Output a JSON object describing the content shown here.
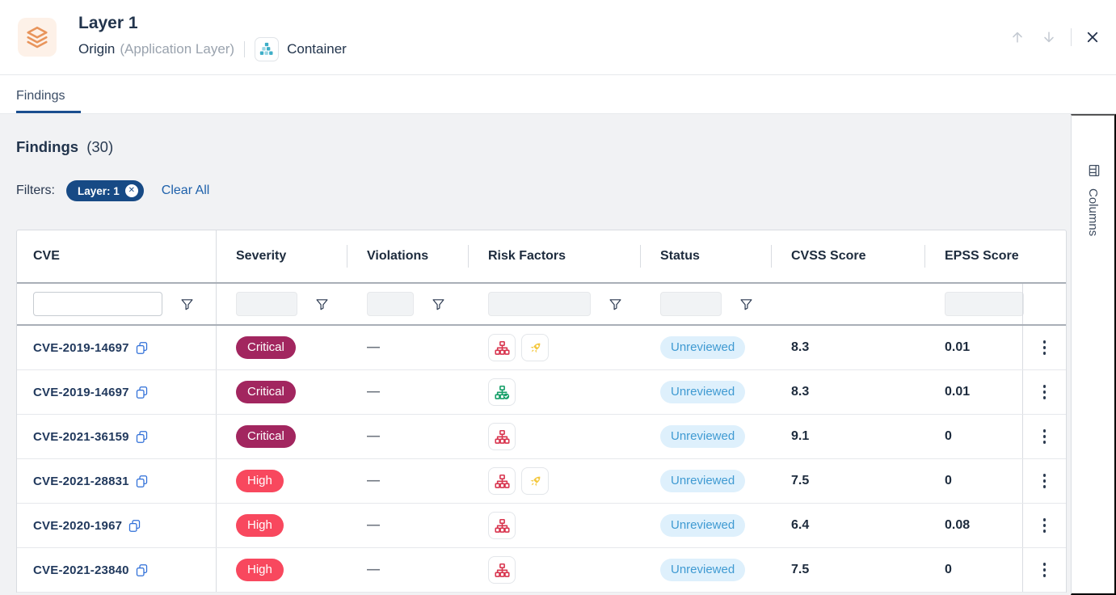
{
  "header": {
    "title": "Layer 1",
    "origin_label": "Origin",
    "origin_sub": "(Application Layer)",
    "type_label": "Container",
    "entity_icon": "layers-icon",
    "type_icon": "container-icon"
  },
  "tabs": [
    {
      "label": "Findings",
      "active": true
    }
  ],
  "findings": {
    "heading": "Findings",
    "count": "(30)"
  },
  "filters": {
    "label": "Filters:",
    "chips": [
      {
        "label": "Layer: 1",
        "close_icon": "circle-x-icon"
      }
    ],
    "clear_all_label": "Clear All"
  },
  "table": {
    "columns": [
      "CVE",
      "Severity",
      "Violations",
      "Risk Factors",
      "Status",
      "CVSS Score",
      "EPSS Score"
    ],
    "columns_button_label": "Columns",
    "rows": [
      {
        "cve": "CVE-2019-14697",
        "severity": "Critical",
        "violations": "—",
        "risk_factors": [
          "attack-vector",
          "exploit"
        ],
        "status": "Unreviewed",
        "cvss": "8.3",
        "epss": "0.01"
      },
      {
        "cve": "CVE-2019-14697",
        "severity": "Critical",
        "violations": "—",
        "risk_factors": [
          "fix-available"
        ],
        "status": "Unreviewed",
        "cvss": "8.3",
        "epss": "0.01"
      },
      {
        "cve": "CVE-2021-36159",
        "severity": "Critical",
        "violations": "—",
        "risk_factors": [
          "attack-vector"
        ],
        "status": "Unreviewed",
        "cvss": "9.1",
        "epss": "0"
      },
      {
        "cve": "CVE-2021-28831",
        "severity": "High",
        "violations": "—",
        "risk_factors": [
          "attack-vector",
          "exploit"
        ],
        "status": "Unreviewed",
        "cvss": "7.5",
        "epss": "0"
      },
      {
        "cve": "CVE-2020-1967",
        "severity": "High",
        "violations": "—",
        "risk_factors": [
          "attack-vector"
        ],
        "status": "Unreviewed",
        "cvss": "6.4",
        "epss": "0.08"
      },
      {
        "cve": "CVE-2021-23840",
        "severity": "High",
        "violations": "—",
        "risk_factors": [
          "attack-vector"
        ],
        "status": "Unreviewed",
        "cvss": "7.5",
        "epss": "0"
      }
    ]
  },
  "colors": {
    "severity": {
      "Critical": "#a2265f",
      "High": "#f8485e"
    },
    "status": {
      "Unreviewed": {
        "bg": "#def0fc",
        "text": "#3f9ad2"
      }
    },
    "accent_blue": "#174a85",
    "tab_underline": "#1a4e8f",
    "risk_icons": {
      "attack-vector": "#d8344e",
      "exploit": "#f3c73c",
      "fix-available": "#149e67"
    }
  }
}
